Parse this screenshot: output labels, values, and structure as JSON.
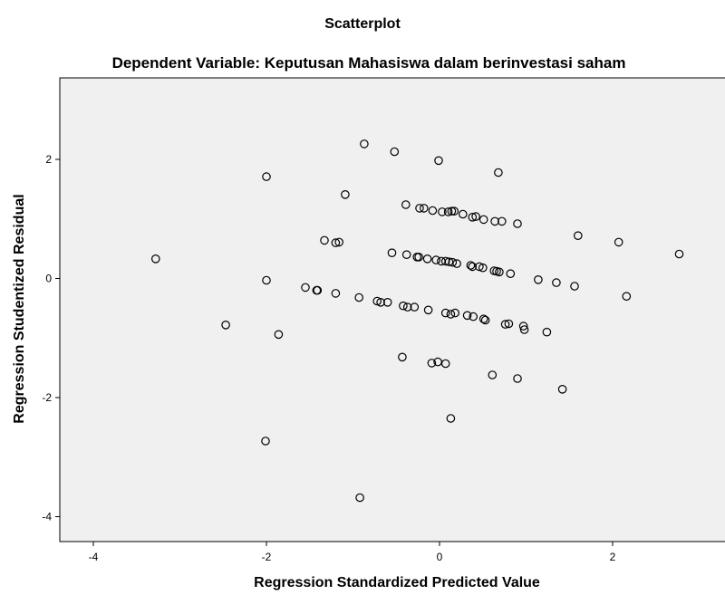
{
  "chart_data": {
    "type": "scatter",
    "title": "Scatterplot",
    "subtitle": "Dependent Variable: Keputusan Mahasiswa dalam berinvestasi saham",
    "xlabel": "Regression Standardized Predicted Value",
    "ylabel": "Regression Studentized Residual",
    "xlim": [
      -4.3,
      3.3
    ],
    "ylim": [
      -4.4,
      3.4
    ],
    "x_ticks": [
      -4,
      -2,
      0,
      2
    ],
    "y_ticks": [
      2,
      0,
      -2,
      -4
    ],
    "x_tick_labels": [
      "-4",
      "-2",
      "0",
      "2"
    ],
    "y_tick_labels": [
      "2",
      "0",
      "-2",
      "-4"
    ],
    "grid": false,
    "background_color": "#f0f0f0",
    "marker_color": "#000000",
    "points": [
      {
        "x": -0.87,
        "y": 2.26
      },
      {
        "x": -0.52,
        "y": 2.13
      },
      {
        "x": -0.01,
        "y": 1.98
      },
      {
        "x": 0.68,
        "y": 1.78
      },
      {
        "x": -2.0,
        "y": 1.71
      },
      {
        "x": -1.09,
        "y": 1.41
      },
      {
        "x": -0.39,
        "y": 1.24
      },
      {
        "x": -0.23,
        "y": 1.18
      },
      {
        "x": -0.18,
        "y": 1.18
      },
      {
        "x": -0.08,
        "y": 1.14
      },
      {
        "x": 0.03,
        "y": 1.12
      },
      {
        "x": 0.1,
        "y": 1.12
      },
      {
        "x": 0.14,
        "y": 1.13
      },
      {
        "x": 0.17,
        "y": 1.13
      },
      {
        "x": 0.27,
        "y": 1.08
      },
      {
        "x": 0.38,
        "y": 1.03
      },
      {
        "x": 0.42,
        "y": 1.04
      },
      {
        "x": 0.51,
        "y": 0.99
      },
      {
        "x": 0.64,
        "y": 0.96
      },
      {
        "x": 0.72,
        "y": 0.96
      },
      {
        "x": 0.9,
        "y": 0.92
      },
      {
        "x": 1.6,
        "y": 0.72
      },
      {
        "x": -1.33,
        "y": 0.64
      },
      {
        "x": -1.2,
        "y": 0.6
      },
      {
        "x": -1.16,
        "y": 0.61
      },
      {
        "x": 2.07,
        "y": 0.61
      },
      {
        "x": -0.55,
        "y": 0.43
      },
      {
        "x": -0.38,
        "y": 0.4
      },
      {
        "x": 2.77,
        "y": 0.41
      },
      {
        "x": -3.28,
        "y": 0.33
      },
      {
        "x": -0.26,
        "y": 0.36
      },
      {
        "x": -0.24,
        "y": 0.36
      },
      {
        "x": -0.14,
        "y": 0.33
      },
      {
        "x": -0.04,
        "y": 0.31
      },
      {
        "x": 0.02,
        "y": 0.29
      },
      {
        "x": 0.07,
        "y": 0.29
      },
      {
        "x": 0.11,
        "y": 0.28
      },
      {
        "x": 0.15,
        "y": 0.27
      },
      {
        "x": 0.2,
        "y": 0.25
      },
      {
        "x": 0.36,
        "y": 0.22
      },
      {
        "x": 0.38,
        "y": 0.2
      },
      {
        "x": 0.46,
        "y": 0.2
      },
      {
        "x": 0.5,
        "y": 0.18
      },
      {
        "x": 0.63,
        "y": 0.13
      },
      {
        "x": 0.66,
        "y": 0.12
      },
      {
        "x": 0.69,
        "y": 0.11
      },
      {
        "x": 0.82,
        "y": 0.08
      },
      {
        "x": 1.14,
        "y": -0.02
      },
      {
        "x": 1.35,
        "y": -0.07
      },
      {
        "x": -2.0,
        "y": -0.03
      },
      {
        "x": 1.56,
        "y": -0.13
      },
      {
        "x": -1.55,
        "y": -0.15
      },
      {
        "x": -1.42,
        "y": -0.2
      },
      {
        "x": -1.41,
        "y": -0.2
      },
      {
        "x": -1.2,
        "y": -0.25
      },
      {
        "x": 2.16,
        "y": -0.3
      },
      {
        "x": -0.93,
        "y": -0.32
      },
      {
        "x": -0.72,
        "y": -0.38
      },
      {
        "x": -0.68,
        "y": -0.4
      },
      {
        "x": -0.6,
        "y": -0.4
      },
      {
        "x": -0.42,
        "y": -0.46
      },
      {
        "x": -0.37,
        "y": -0.48
      },
      {
        "x": -0.29,
        "y": -0.48
      },
      {
        "x": -0.13,
        "y": -0.53
      },
      {
        "x": 0.07,
        "y": -0.58
      },
      {
        "x": 0.13,
        "y": -0.6
      },
      {
        "x": 0.18,
        "y": -0.58
      },
      {
        "x": 0.32,
        "y": -0.62
      },
      {
        "x": 0.39,
        "y": -0.64
      },
      {
        "x": 0.51,
        "y": -0.68
      },
      {
        "x": 0.53,
        "y": -0.7
      },
      {
        "x": 0.76,
        "y": -0.77
      },
      {
        "x": 0.8,
        "y": -0.76
      },
      {
        "x": 0.97,
        "y": -0.8
      },
      {
        "x": 0.98,
        "y": -0.86
      },
      {
        "x": -2.47,
        "y": -0.78
      },
      {
        "x": 1.24,
        "y": -0.9
      },
      {
        "x": -1.86,
        "y": -0.94
      },
      {
        "x": -0.43,
        "y": -1.32
      },
      {
        "x": -0.09,
        "y": -1.42
      },
      {
        "x": -0.02,
        "y": -1.4
      },
      {
        "x": 0.07,
        "y": -1.43
      },
      {
        "x": 0.61,
        "y": -1.62
      },
      {
        "x": 0.9,
        "y": -1.68
      },
      {
        "x": 1.42,
        "y": -1.86
      },
      {
        "x": 0.13,
        "y": -2.35
      },
      {
        "x": -2.01,
        "y": -2.73
      },
      {
        "x": -0.92,
        "y": -3.68
      }
    ]
  }
}
